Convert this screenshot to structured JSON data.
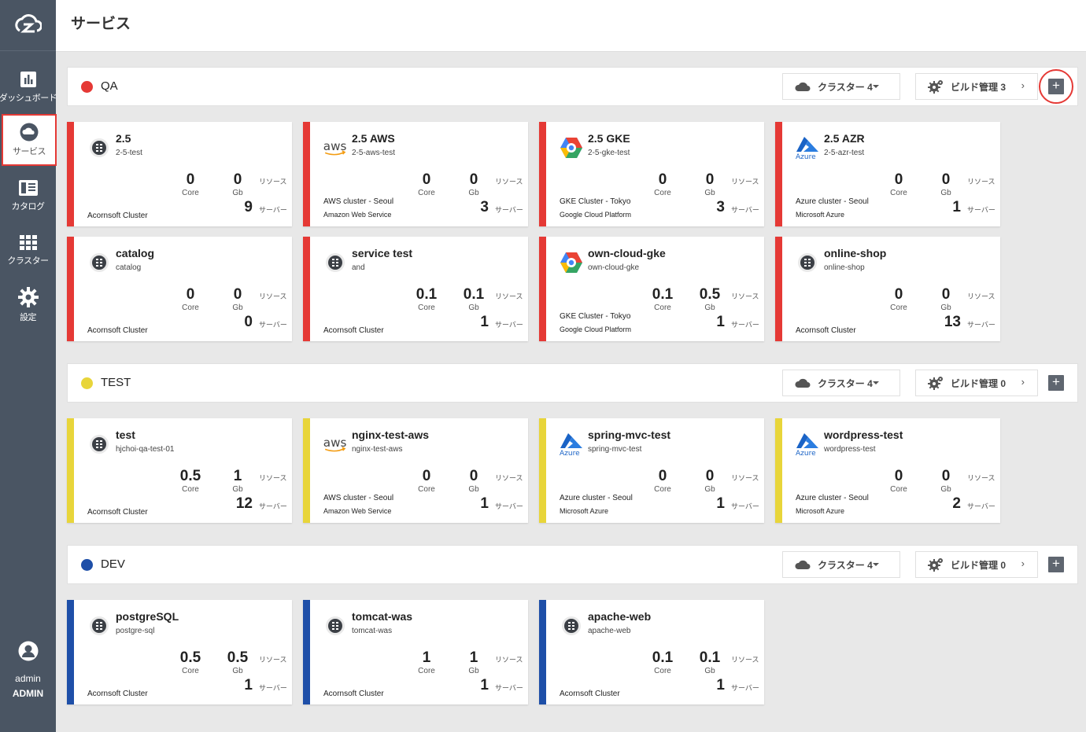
{
  "header": {
    "title": "サービス"
  },
  "sidebar": {
    "items": [
      {
        "label": "ダッシュボード",
        "icon": "chart-icon"
      },
      {
        "label": "サービス",
        "icon": "cloud-icon"
      },
      {
        "label": "カタログ",
        "icon": "catalog-icon"
      },
      {
        "label": "クラスター",
        "icon": "grid-icon"
      },
      {
        "label": "設定",
        "icon": "gear-icon"
      }
    ],
    "user": {
      "name": "admin",
      "role": "ADMIN"
    }
  },
  "labels": {
    "core": "Core",
    "gb": "Gb",
    "resource": "リソース",
    "server": "サーバー"
  },
  "colors": {
    "qa": "#e53935",
    "test": "#e8d53a",
    "dev": "#1e4fa8"
  },
  "sections": [
    {
      "name": "QA",
      "cluster_label": "クラスター 4",
      "build_label": "ビルド管理 3",
      "cards": [
        {
          "title": "2.5",
          "sub": "2-5-test",
          "logo": "acornsoft",
          "core": "0",
          "gb": "0",
          "servers": "9",
          "cluster": "Acornsoft Cluster",
          "provider": ""
        },
        {
          "title": "2.5 AWS",
          "sub": "2-5-aws-test",
          "logo": "aws",
          "core": "0",
          "gb": "0",
          "servers": "3",
          "cluster": "AWS cluster - Seoul",
          "provider": "Amazon Web Service"
        },
        {
          "title": "2.5 GKE",
          "sub": "2-5-gke-test",
          "logo": "gke",
          "core": "0",
          "gb": "0",
          "servers": "3",
          "cluster": "GKE Cluster - Tokyo",
          "provider": "Google Cloud Platform"
        },
        {
          "title": "2.5 AZR",
          "sub": "2-5-azr-test",
          "logo": "azure",
          "core": "0",
          "gb": "0",
          "servers": "1",
          "cluster": "Azure cluster - Seoul",
          "provider": "Microsoft Azure"
        },
        {
          "title": "catalog",
          "sub": "catalog",
          "logo": "acornsoft",
          "core": "0",
          "gb": "0",
          "servers": "0",
          "cluster": "Acornsoft Cluster",
          "provider": ""
        },
        {
          "title": "service test",
          "sub": "and",
          "logo": "acornsoft",
          "core": "0.1",
          "gb": "0.1",
          "servers": "1",
          "cluster": "Acornsoft Cluster",
          "provider": ""
        },
        {
          "title": "own-cloud-gke",
          "sub": "own-cloud-gke",
          "logo": "gke",
          "core": "0.1",
          "gb": "0.5",
          "servers": "1",
          "cluster": "GKE Cluster - Tokyo",
          "provider": "Google Cloud Platform"
        },
        {
          "title": "online-shop",
          "sub": "online-shop",
          "logo": "acornsoft",
          "core": "0",
          "gb": "0",
          "servers": "13",
          "cluster": "Acornsoft Cluster",
          "provider": ""
        }
      ]
    },
    {
      "name": "TEST",
      "cluster_label": "クラスター 4",
      "build_label": "ビルド管理 0",
      "cards": [
        {
          "title": "test",
          "sub": "hjchoi-qa-test-01",
          "logo": "acornsoft",
          "core": "0.5",
          "gb": "1",
          "servers": "12",
          "cluster": "Acornsoft Cluster",
          "provider": ""
        },
        {
          "title": "nginx-test-aws",
          "sub": "nginx-test-aws",
          "logo": "aws",
          "core": "0",
          "gb": "0",
          "servers": "1",
          "cluster": "AWS cluster - Seoul",
          "provider": "Amazon Web Service"
        },
        {
          "title": "spring-mvc-test",
          "sub": "spring-mvc-test",
          "logo": "azure",
          "core": "0",
          "gb": "0",
          "servers": "1",
          "cluster": "Azure cluster - Seoul",
          "provider": "Microsoft Azure"
        },
        {
          "title": "wordpress-test",
          "sub": "wordpress-test",
          "logo": "azure",
          "core": "0",
          "gb": "0",
          "servers": "2",
          "cluster": "Azure cluster - Seoul",
          "provider": "Microsoft Azure"
        }
      ]
    },
    {
      "name": "DEV",
      "cluster_label": "クラスター 4",
      "build_label": "ビルド管理 0",
      "cards": [
        {
          "title": "postgreSQL",
          "sub": "postgre-sql",
          "logo": "acornsoft",
          "core": "0.5",
          "gb": "0.5",
          "servers": "1",
          "cluster": "Acornsoft Cluster",
          "provider": ""
        },
        {
          "title": "tomcat-was",
          "sub": "tomcat-was",
          "logo": "acornsoft",
          "core": "1",
          "gb": "1",
          "servers": "1",
          "cluster": "Acornsoft Cluster",
          "provider": ""
        },
        {
          "title": "apache-web",
          "sub": "apache-web",
          "logo": "acornsoft",
          "core": "0.1",
          "gb": "0.1",
          "servers": "1",
          "cluster": "Acornsoft Cluster",
          "provider": ""
        }
      ]
    }
  ]
}
